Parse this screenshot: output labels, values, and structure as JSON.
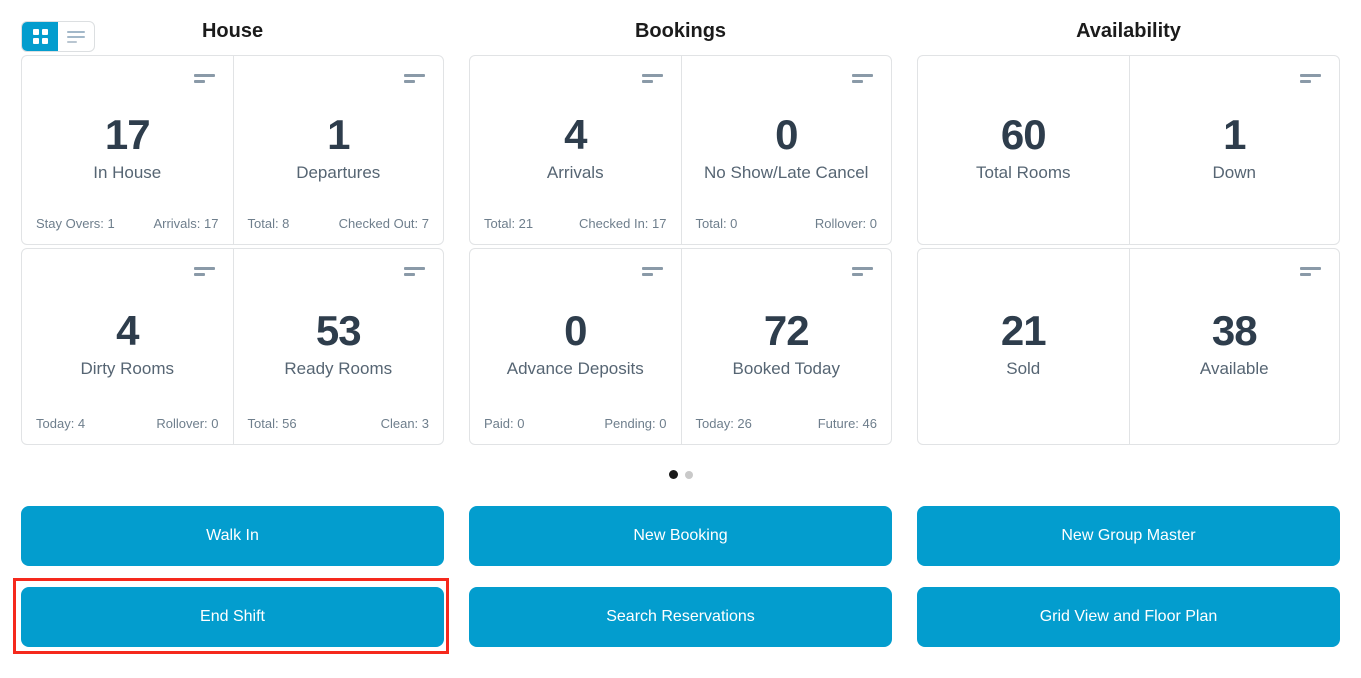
{
  "view_toggle": {
    "grid_option": "grid-view",
    "list_option": "list-view",
    "active": "grid-view"
  },
  "sections": [
    {
      "title": "House",
      "cards": [
        {
          "value": "17",
          "label": "In House",
          "stat_left": "Stay Overs: 1",
          "stat_right": "Arrivals: 17"
        },
        {
          "value": "1",
          "label": "Departures",
          "stat_left": "Total: 8",
          "stat_right": "Checked Out: 7"
        },
        {
          "value": "4",
          "label": "Dirty Rooms",
          "stat_left": "Today: 4",
          "stat_right": "Rollover: 0"
        },
        {
          "value": "53",
          "label": "Ready Rooms",
          "stat_left": "Total: 56",
          "stat_right": "Clean: 3"
        }
      ]
    },
    {
      "title": "Bookings",
      "cards": [
        {
          "value": "4",
          "label": "Arrivals",
          "stat_left": "Total: 21",
          "stat_right": "Checked In: 17"
        },
        {
          "value": "0",
          "label": "No Show/Late Cancel",
          "stat_left": "Total: 0",
          "stat_right": "Rollover: 0"
        },
        {
          "value": "0",
          "label": "Advance Deposits",
          "stat_left": "Paid: 0",
          "stat_right": "Pending: 0"
        },
        {
          "value": "72",
          "label": "Booked Today",
          "stat_left": "Today: 26",
          "stat_right": "Future: 46"
        }
      ]
    },
    {
      "title": "Availability",
      "cards": [
        {
          "value": "60",
          "label": "Total Rooms"
        },
        {
          "value": "1",
          "label": "Down"
        },
        {
          "value": "21",
          "label": "Sold"
        },
        {
          "value": "38",
          "label": "Available"
        }
      ]
    }
  ],
  "pagination": {
    "dot_count": 2,
    "active_index": 0
  },
  "actions": {
    "rows": [
      [
        {
          "label": "Walk In"
        },
        {
          "label": "New Booking"
        },
        {
          "label": "New Group Master"
        }
      ],
      [
        {
          "label": "End Shift",
          "highlighted": true
        },
        {
          "label": "Search Reservations"
        },
        {
          "label": "Grid View and Floor Plan"
        }
      ]
    ]
  },
  "colors": {
    "accent_blue": "#039dce",
    "annotation_red": "#f5291d",
    "metric_value": "#2e3d4c",
    "metric_label": "#566573",
    "substat_text": "#6e7e8c"
  }
}
